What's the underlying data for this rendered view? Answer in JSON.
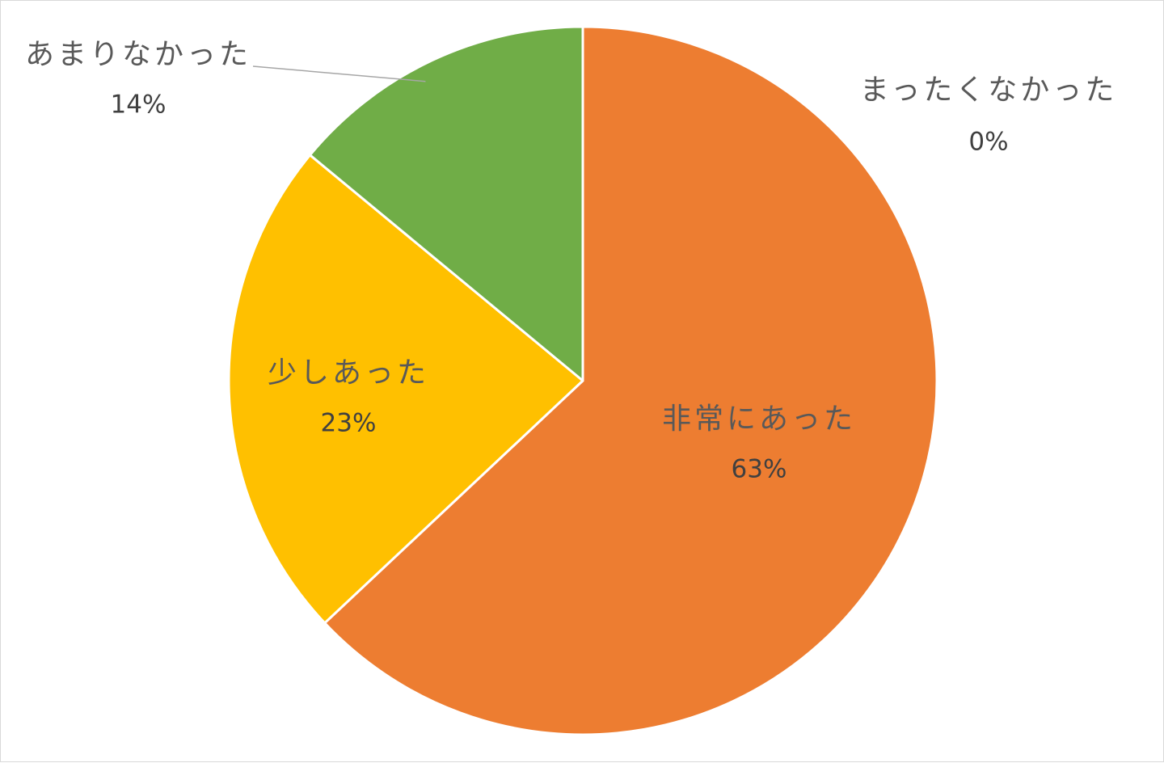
{
  "chart_data": {
    "type": "pie",
    "start_angle": "12 o'clock, clockwise",
    "slices": [
      {
        "label": "非常にあった",
        "value": 63,
        "display": "63%",
        "color": "#ED7D31"
      },
      {
        "label": "少しあった",
        "value": 23,
        "display": "23%",
        "color": "#FFC000"
      },
      {
        "label": "あまりなかった",
        "value": 14,
        "display": "14%",
        "color": "#70AD47"
      },
      {
        "label": "まったくなかった",
        "value": 0,
        "display": "0%",
        "color": "#4472C4"
      }
    ],
    "slice_border_color": "#ffffff",
    "legend": "none",
    "data_labels": "category name and percentage"
  }
}
